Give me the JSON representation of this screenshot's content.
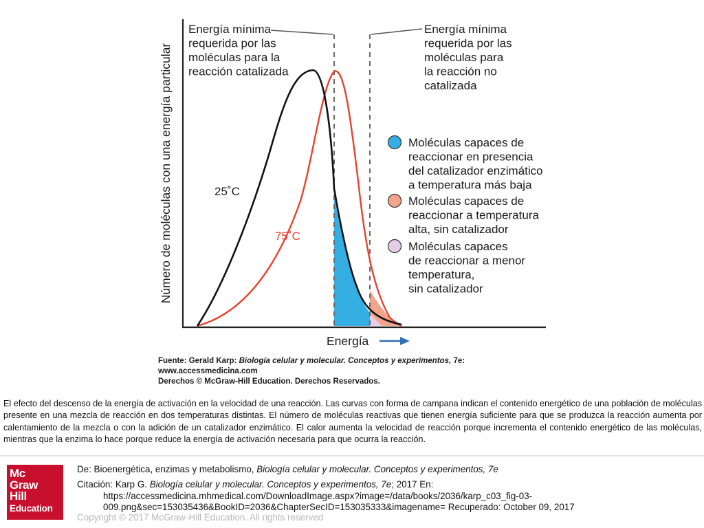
{
  "figure": {
    "y_axis_label": "Número de moléculas con una energía particular",
    "x_axis_label": "Energía",
    "note_left_lines": [
      "Energía mínima",
      "requerida por las",
      "moléculas para la",
      "reacción catalizada"
    ],
    "note_right_lines": [
      "Energía mínima",
      "requerida por las",
      "moléculas para",
      "la reacción no",
      "catalizada"
    ],
    "curve_labels": {
      "low": "25˚C",
      "high": "75˚C"
    },
    "legend": [
      {
        "color": "#35afe3",
        "lines": [
          "Moléculas capaces de",
          "reaccionar en presencia",
          "del catalizador enzimático",
          "a temperatura más baja"
        ]
      },
      {
        "color": "#f4a48a",
        "lines": [
          "Moléculas capaces de",
          "reaccionar a temperatura",
          "alta, sin catalizador"
        ]
      },
      {
        "color": "#e6cde6",
        "lines": [
          "Moléculas capaces",
          "de reaccionar a menor",
          "temperatura,",
          "sin catalizador"
        ]
      }
    ],
    "credit": {
      "line1_prefix": "Fuente: Gerald Karp: ",
      "line1_italic": "Biología celular y molecular. Conceptos y experimentos,",
      "line1_suffix": " 7e:",
      "line2": "www.accessmedicina.com",
      "line3": "Derechos © McGraw-Hill Education. Derechos Reservados."
    },
    "colors": {
      "curve_25": "#111111",
      "curve_75": "#e8412f",
      "arrow": "#2f6fb8",
      "threshold_line": "#666666"
    }
  },
  "caption": "El efecto del descenso de la energía de activación en la velocidad de una reacción. Las curvas con forma de campana indican el contenido energético de una población de moléculas presente en una mezcla de reacción en dos temperaturas distintas. El número de moléculas reactivas que tienen energía suficiente para que se produzca la reacción aumenta por calentamiento de la mezcla o con la adición de un catalizador enzimático. El calor aumenta la velocidad de reacción porque incrementa el contenido energético de las moléculas, mientras que la enzima lo hace porque reduce la energía de activación necesaria para que ocurra la reacción.",
  "logo": {
    "lines": [
      "Mc",
      "Graw",
      "Hill"
    ],
    "sub": "Education",
    "color": "#c8102e"
  },
  "source": {
    "de_prefix": "De: Bioenergética, enzimas y metabolismo, ",
    "de_italic": "Biología celular y molecular. Conceptos y experimentos, 7e",
    "citation_prefix": "Citación: Karp G",
    "citation_sep": ". ",
    "citation_italic": "Biología celular y molecular. Conceptos y experimentos, 7e",
    "citation_suffix": "; 2017 En:",
    "url_line1": "https://accessmedicina.mhmedical.com/DownloadImage.aspx?image=/data/books/2036/karp_c03_fig-03-",
    "url_line2": "009.png&sec=153035436&BookID=2036&ChapterSecID=153035333&imagename= Recuperado: October 09, 2017"
  },
  "copyright": "Copyright © 2017 McGraw-Hill Education. All rights reserved"
}
